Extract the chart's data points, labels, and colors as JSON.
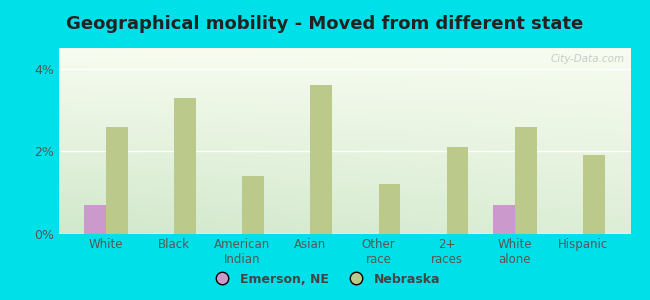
{
  "title": "Geographical mobility - Moved from different state",
  "categories": [
    "White",
    "Black",
    "American\nIndian",
    "Asian",
    "Other\nrace",
    "2+\nraces",
    "White\nalone",
    "Hispanic"
  ],
  "emerson_values": [
    0.7,
    0.0,
    0.0,
    0.0,
    0.0,
    0.0,
    0.7,
    0.0
  ],
  "nebraska_values": [
    2.6,
    3.3,
    1.4,
    3.6,
    1.2,
    2.1,
    2.6,
    1.9
  ],
  "emerson_color": "#cc99cc",
  "nebraska_color": "#bbc98a",
  "background_outer": "#00e0e8",
  "ylim": [
    0,
    4.5
  ],
  "yticks": [
    0,
    2,
    4
  ],
  "ytick_labels": [
    "0%",
    "2%",
    "4%"
  ],
  "bar_width": 0.32,
  "legend_emerson": "Emerson, NE",
  "legend_nebraska": "Nebraska",
  "watermark": "City-Data.com",
  "title_fontsize": 13,
  "tick_fontsize": 8.5
}
